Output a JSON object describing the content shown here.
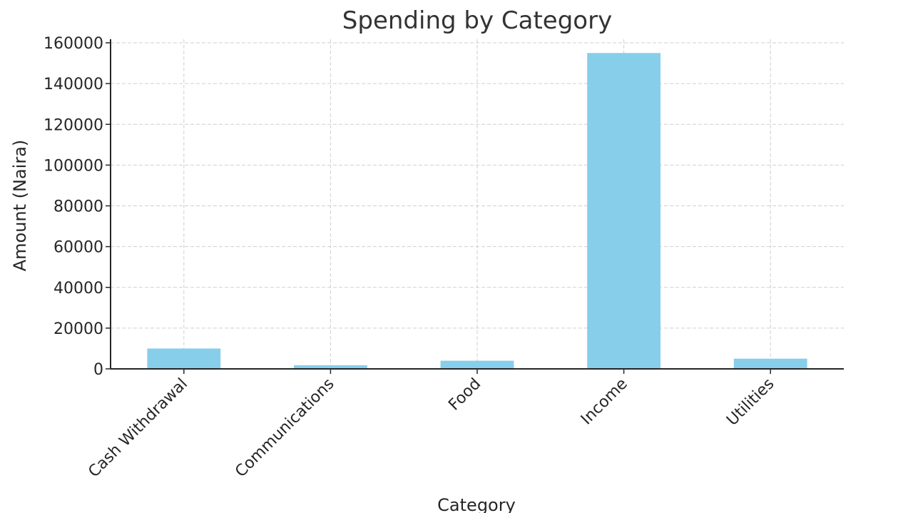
{
  "chart_data": {
    "type": "bar",
    "title": "Spending by Category",
    "xlabel": "Category",
    "ylabel": "Amount (Naira)",
    "categories": [
      "Cash Withdrawal",
      "Communications",
      "Food",
      "Income",
      "Utilities"
    ],
    "values": [
      10000,
      1800,
      4000,
      155000,
      5000
    ],
    "ylim": [
      0,
      160000
    ],
    "yticks": [
      0,
      20000,
      40000,
      60000,
      80000,
      100000,
      120000,
      140000,
      160000
    ],
    "grid": true,
    "bar_color": "#87ceeb"
  }
}
